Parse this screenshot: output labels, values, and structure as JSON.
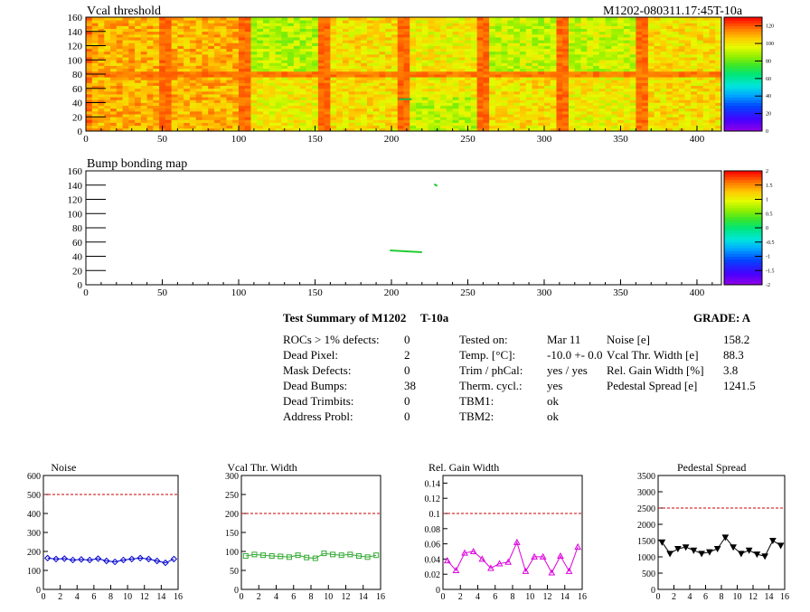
{
  "header": {
    "title": "Vcal threshold",
    "module_tag": "M1202-080311.17:45T-10a"
  },
  "chart_data": [
    {
      "type": "heatmap",
      "title": "Vcal threshold",
      "xlim": [
        0,
        416
      ],
      "ylim": [
        0,
        160
      ],
      "x_ticks": [
        0,
        50,
        100,
        150,
        200,
        250,
        300,
        350,
        400
      ],
      "y_ticks": [
        0,
        20,
        40,
        60,
        80,
        100,
        120,
        140,
        160
      ],
      "zlim": [
        0,
        130
      ],
      "z_ticks": [
        0,
        20,
        40,
        60,
        80,
        100,
        120
      ],
      "grid": false,
      "legend": "color scale right",
      "roc_columns": [
        52,
        104,
        156,
        208,
        260,
        312,
        364
      ],
      "roc_row": 80,
      "hot_regions": [
        [
          0,
          52
        ],
        [
          52,
          104
        ]
      ],
      "cold_spots": [
        {
          "x": 205,
          "y": 46
        }
      ]
    },
    {
      "type": "heatmap",
      "title": "Bump bonding map",
      "xlim": [
        0,
        416
      ],
      "ylim": [
        0,
        160
      ],
      "x_ticks": [
        0,
        50,
        100,
        150,
        200,
        250,
        300,
        350,
        400
      ],
      "y_ticks": [
        0,
        20,
        40,
        60,
        80,
        100,
        120,
        140,
        160
      ],
      "zlim": [
        -2,
        2
      ],
      "z_ticks": [
        "-2",
        "-1.5",
        "-1",
        "-0.5",
        "0",
        "0.5",
        "1",
        "1.5",
        "2"
      ],
      "legend": "color scale right",
      "hits": [
        {
          "x0": 199,
          "x1": 220,
          "y": 47
        },
        {
          "x0": 228,
          "x1": 230,
          "y": 140
        }
      ]
    },
    {
      "type": "line",
      "title": "Noise",
      "x": [
        0,
        1,
        2,
        3,
        4,
        5,
        6,
        7,
        8,
        9,
        10,
        11,
        12,
        13,
        14,
        15
      ],
      "values": [
        165,
        160,
        162,
        155,
        158,
        155,
        162,
        150,
        145,
        155,
        160,
        165,
        160,
        150,
        140,
        160
      ],
      "ylim": [
        0,
        600
      ],
      "y_ticks": [
        0,
        100,
        200,
        300,
        400,
        500,
        600
      ],
      "x_ticks": [
        0,
        2,
        4,
        6,
        8,
        10,
        12,
        14,
        16
      ],
      "xlim": [
        0,
        16
      ],
      "threshold": 500,
      "color": "#0000cc",
      "marker": "diamond"
    },
    {
      "type": "line",
      "title": "Vcal Thr. Width",
      "x": [
        0,
        1,
        2,
        3,
        4,
        5,
        6,
        7,
        8,
        9,
        10,
        11,
        12,
        13,
        14,
        15
      ],
      "values": [
        88,
        92,
        90,
        88,
        87,
        85,
        90,
        84,
        82,
        95,
        92,
        90,
        92,
        88,
        85,
        90
      ],
      "ylim": [
        0,
        300
      ],
      "y_ticks": [
        0,
        50,
        100,
        150,
        200,
        250,
        300
      ],
      "x_ticks": [
        0,
        2,
        4,
        6,
        8,
        10,
        12,
        14,
        16
      ],
      "xlim": [
        0,
        16
      ],
      "threshold": 200,
      "color": "#33aa33",
      "marker": "square"
    },
    {
      "type": "line",
      "title": "Rel. Gain Width",
      "x": [
        0,
        1,
        2,
        3,
        4,
        5,
        6,
        7,
        8,
        9,
        10,
        11,
        12,
        13,
        14,
        15
      ],
      "values": [
        0.038,
        0.025,
        0.048,
        0.05,
        0.04,
        0.028,
        0.034,
        0.036,
        0.062,
        0.024,
        0.043,
        0.043,
        0.022,
        0.044,
        0.024,
        0.056
      ],
      "ylim": [
        0,
        0.15
      ],
      "y_ticks": [
        0,
        0.02,
        0.04,
        0.06,
        0.08,
        0.1,
        0.12,
        0.14
      ],
      "x_ticks": [
        0,
        2,
        4,
        6,
        8,
        10,
        12,
        14,
        16
      ],
      "xlim": [
        0,
        16
      ],
      "threshold": 0.1,
      "color": "#dd00dd",
      "marker": "triangle"
    },
    {
      "type": "line",
      "title": "Pedestal Spread",
      "x": [
        0,
        1,
        2,
        3,
        4,
        5,
        6,
        7,
        8,
        9,
        10,
        11,
        12,
        13,
        14,
        15
      ],
      "values": [
        1450,
        1100,
        1250,
        1300,
        1200,
        1100,
        1150,
        1250,
        1600,
        1300,
        1100,
        1200,
        1080,
        1020,
        1500,
        1350
      ],
      "ylim": [
        0,
        3500
      ],
      "y_ticks": [
        0,
        500,
        1000,
        1500,
        2000,
        2500,
        3000,
        3500
      ],
      "x_ticks": [
        0,
        2,
        4,
        6,
        8,
        10,
        12,
        14,
        16
      ],
      "xlim": [
        0,
        16
      ],
      "threshold": 2500,
      "color": "#000000",
      "marker": "triangle-down"
    }
  ],
  "summary": {
    "title": "Test Summary of M1202",
    "temp_tag": "T-10a",
    "grade_label": "GRADE:  A",
    "col1": [
      {
        "label": "ROCs > 1% defects:",
        "value": "0"
      },
      {
        "label": "Dead Pixel:",
        "value": "2"
      },
      {
        "label": "Mask Defects:",
        "value": "0"
      },
      {
        "label": "Dead Bumps:",
        "value": "38"
      },
      {
        "label": "Dead Trimbits:",
        "value": "0"
      },
      {
        "label": "Address Probl:",
        "value": "0"
      }
    ],
    "col2": [
      {
        "label": "Tested on:",
        "value": "Mar 11"
      },
      {
        "label": "Temp. [°C]:",
        "value": "-10.0 +- 0.0"
      },
      {
        "label": "Trim / phCal:",
        "value": "yes / yes"
      },
      {
        "label": "Therm. cycl.:",
        "value": "yes"
      },
      {
        "label": "TBM1:",
        "value": "ok"
      },
      {
        "label": "TBM2:",
        "value": "ok"
      }
    ],
    "col3": [
      {
        "label": "Noise [e]",
        "value": "158.2"
      },
      {
        "label": "Vcal Thr. Width [e]",
        "value": "88.3"
      },
      {
        "label": "Rel. Gain Width [%]",
        "value": "3.8"
      },
      {
        "label": "Pedestal Spread [e]",
        "value": "1241.5"
      }
    ]
  }
}
